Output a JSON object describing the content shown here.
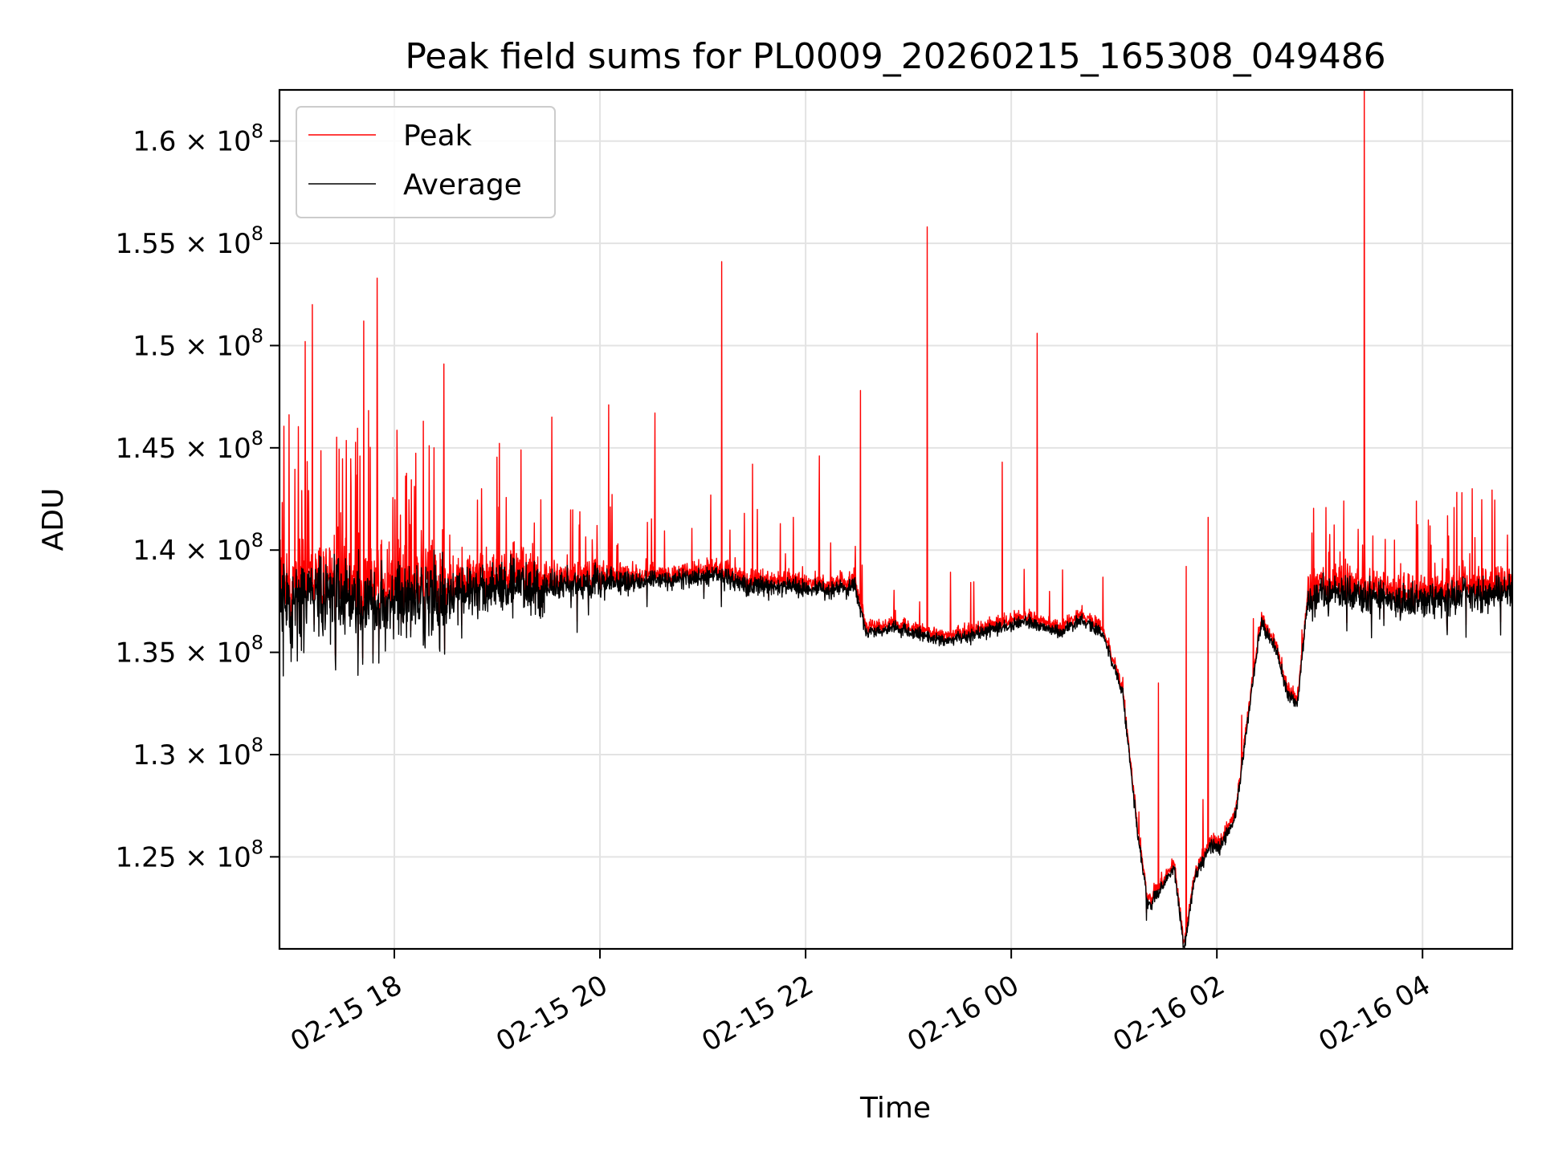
{
  "chart_data": {
    "type": "line",
    "title": "Peak field sums for PL0009_20260215_165308_049486",
    "xlabel": "Time",
    "ylabel": "ADU",
    "grid": true,
    "legend_position": "upper-left",
    "x_unit": "hours since 02-15 16:53 (local)",
    "xlim_hours": [
      0,
      11.99
    ],
    "x_ticks": [
      {
        "label": "02-15 18",
        "hours": 1.117
      },
      {
        "label": "02-15 20",
        "hours": 3.117
      },
      {
        "label": "02-15 22",
        "hours": 5.117
      },
      {
        "label": "02-16 00",
        "hours": 7.117
      },
      {
        "label": "02-16 02",
        "hours": 9.117
      },
      {
        "label": "02-16 04",
        "hours": 11.117
      }
    ],
    "ylim": [
      120500000,
      162500000
    ],
    "y_ticks": [
      {
        "value": 125000000,
        "mantissa": "1.25",
        "exp": "8"
      },
      {
        "value": 130000000,
        "mantissa": "1.3",
        "exp": "8"
      },
      {
        "value": 135000000,
        "mantissa": "1.35",
        "exp": "8"
      },
      {
        "value": 140000000,
        "mantissa": "1.4",
        "exp": "8"
      },
      {
        "value": 145000000,
        "mantissa": "1.45",
        "exp": "8"
      },
      {
        "value": 150000000,
        "mantissa": "1.5",
        "exp": "8"
      },
      {
        "value": 155000000,
        "mantissa": "1.55",
        "exp": "8"
      },
      {
        "value": 160000000,
        "mantissa": "1.6",
        "exp": "8"
      }
    ],
    "y_tick_multiplier": "× 10",
    "series": [
      {
        "name": "Peak",
        "color": "#ff0000"
      },
      {
        "name": "Average",
        "color": "#000000"
      }
    ],
    "average_baseline": {
      "hours": [
        0,
        0.5,
        1.0,
        1.5,
        2.0,
        2.5,
        3.0,
        3.5,
        4.0,
        4.3,
        4.5,
        5.0,
        5.3,
        5.6,
        5.7,
        6.0,
        6.5,
        7.0,
        7.3,
        7.6,
        7.8,
        8.0,
        8.2,
        8.35,
        8.45,
        8.7,
        8.8,
        8.9,
        9.05,
        9.15,
        9.25,
        9.3,
        9.45,
        9.55,
        9.7,
        9.8,
        9.9,
        10.0,
        10.2,
        10.5,
        11.0,
        11.5,
        11.99
      ],
      "values": [
        137.5,
        137.8,
        137.5,
        137.7,
        138.0,
        138.2,
        138.4,
        138.5,
        138.6,
        138.8,
        138.3,
        138.2,
        138.0,
        138.2,
        136.0,
        136.2,
        135.5,
        136.2,
        136.5,
        136.0,
        136.6,
        136.0,
        133.0,
        126.0,
        122.5,
        124.5,
        120.5,
        124.0,
        125.5,
        125.5,
        126.5,
        127.0,
        133.0,
        136.5,
        135.0,
        133.0,
        132.5,
        137.5,
        138.0,
        137.8,
        137.5,
        137.8,
        138.0
      ]
    },
    "notable_peaks": [
      {
        "hours": 0.25,
        "value": 150.2
      },
      {
        "hours": 0.32,
        "value": 152.0
      },
      {
        "hours": 0.82,
        "value": 151.2
      },
      {
        "hours": 0.95,
        "value": 153.3
      },
      {
        "hours": 1.4,
        "value": 146.3
      },
      {
        "hours": 1.6,
        "value": 149.1
      },
      {
        "hours": 2.35,
        "value": 144.9
      },
      {
        "hours": 2.65,
        "value": 146.5
      },
      {
        "hours": 3.2,
        "value": 147.1
      },
      {
        "hours": 3.65,
        "value": 146.7
      },
      {
        "hours": 4.3,
        "value": 154.1
      },
      {
        "hours": 4.6,
        "value": 144.2
      },
      {
        "hours": 5.25,
        "value": 144.6
      },
      {
        "hours": 5.65,
        "value": 147.8
      },
      {
        "hours": 6.3,
        "value": 155.8
      },
      {
        "hours": 7.03,
        "value": 144.3
      },
      {
        "hours": 7.37,
        "value": 150.6
      },
      {
        "hours": 8.55,
        "value": 133.5
      },
      {
        "hours": 8.82,
        "value": 139.2
      },
      {
        "hours": 9.03,
        "value": 141.6
      },
      {
        "hours": 10.35,
        "value": 142.4
      },
      {
        "hours": 10.55,
        "value": 162.5
      },
      {
        "hours": 11.6,
        "value": 143.0
      }
    ]
  }
}
